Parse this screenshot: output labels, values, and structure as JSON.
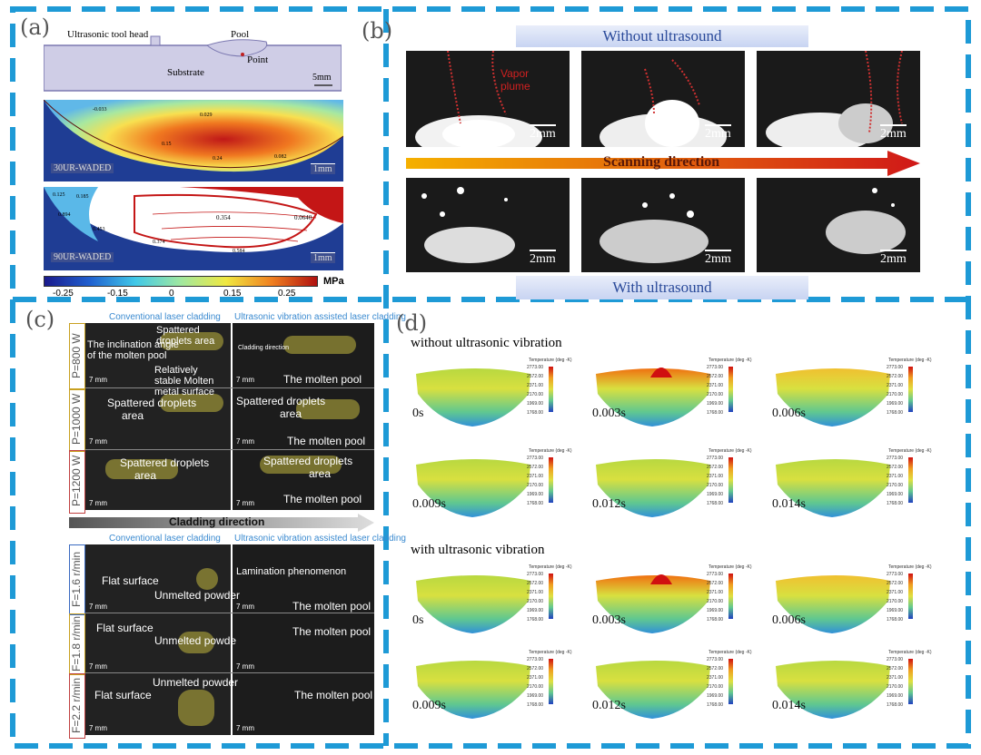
{
  "panels": {
    "a": {
      "label": "(a)",
      "schematic": {
        "tool_head": "Ultrasonic tool head",
        "pool": "Pool",
        "point": "Point",
        "substrate": "Substrate",
        "scale": "5mm"
      },
      "plot1": {
        "label": "30UR-WADED",
        "scale": "1mm",
        "contours": [
          "-0.033",
          "0.029",
          "0.15",
          "0.15",
          "0.082",
          "0.24"
        ]
      },
      "plot2": {
        "label": "90UR-WADED",
        "scale": "1mm",
        "contours": [
          "0.125",
          "0.185",
          "0.894",
          "0.354",
          "0.0640",
          "0.374",
          "0.584",
          "0.453"
        ]
      },
      "colorbar": {
        "ticks": [
          "-0.25",
          "-0.15",
          "0",
          "0.15",
          "0.25"
        ],
        "unit": "MPa"
      }
    },
    "b": {
      "label": "(b)",
      "without": "Without ultrasound",
      "with": "With ultrasound",
      "arrow": "Scanning direction",
      "annotation": "Vapor plume",
      "scale": "2mm"
    },
    "c": {
      "label": "(c)",
      "col_conv": "Conventional laser cladding",
      "col_ultra": "Ultrasonic vibration assisted laser cladding",
      "power_rows": [
        "P=800 W",
        "P=1000 W",
        "P=1200 W"
      ],
      "feed_rows": [
        "F=1.6 r/min",
        "F=1.8 r/min",
        "F=2.2 r/min"
      ],
      "arrow": "Cladding direction",
      "scale": "7 mm",
      "texts": {
        "spattered_area": "Spattered droplets area",
        "spattered": "Spattered droplets",
        "area": "area",
        "inclination": "The inclination angle of the molten pool",
        "stable": "Relatively stable Molten metal surface",
        "molten_pool": "The molten pool",
        "cladding_dir_small": "Cladding direction",
        "flat": "Flat surface",
        "unmelted": "Unmelted powder",
        "unmelted_cut": "Unmelted powde",
        "lamination": "Lamination phenomenon"
      }
    },
    "d": {
      "label": "(d)",
      "without": "without ultrasonic vibration",
      "with": "with ultrasonic vibration",
      "times": [
        "0s",
        "0.003s",
        "0.006s",
        "0.009s",
        "0.012s",
        "0.014s"
      ],
      "legend_title": "Temperature (deg -K)",
      "legend_values": [
        "2773.00",
        "2572.00",
        "2371.00",
        "2170.00",
        "1969.00",
        "1768.00"
      ]
    }
  },
  "colors": {
    "dash": "#1e9ad6",
    "banner_text": "#2a4a9a",
    "arrow_start": "#f5b000",
    "arrow_end": "#d01818"
  }
}
